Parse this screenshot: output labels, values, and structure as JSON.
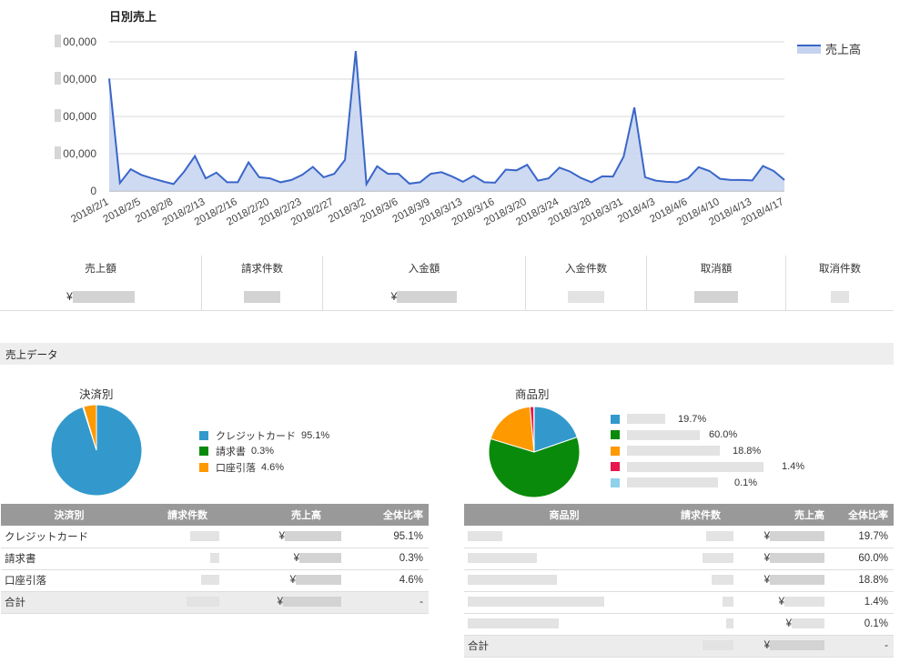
{
  "chart_data": {
    "type": "area",
    "title": "日別売上",
    "series": [
      {
        "name": "売上高",
        "color": "#3a66c9",
        "values": [
          490,
          35,
          95,
          70,
          55,
          42,
          30,
          85,
          152,
          55,
          80,
          38,
          38,
          125,
          60,
          55,
          38,
          48,
          70,
          105,
          60,
          75,
          135,
          610,
          30,
          108,
          75,
          75,
          32,
          38,
          75,
          82,
          63,
          40,
          66,
          38,
          36,
          93,
          90,
          114,
          45,
          55,
          102,
          85,
          57,
          38,
          64,
          63,
          150,
          364,
          60,
          45,
          40,
          38,
          55,
          104,
          87,
          53,
          48,
          48,
          46,
          109,
          87,
          48
        ]
      }
    ],
    "x_tick_labels": [
      "2018/2/1",
      "2018/2/5",
      "2018/2/8",
      "2018/2/13",
      "2018/2/16",
      "2018/2/20",
      "2018/2/23",
      "2018/2/27",
      "2018/3/2",
      "2018/3/6",
      "2018/3/9",
      "2018/3/13",
      "2018/3/16",
      "2018/3/20",
      "2018/3/24",
      "2018/3/28",
      "2018/3/31",
      "2018/4/3",
      "2018/4/6",
      "2018/4/10",
      "2018/4/13",
      "2018/4/17"
    ],
    "y_tick_labels": [
      "0",
      "00,000",
      "00,000",
      "00,000",
      "00,000"
    ],
    "grid": true,
    "legend": "top-right"
  },
  "summary": {
    "items": [
      {
        "label": "売上額",
        "prefix": "¥"
      },
      {
        "label": "請求件数",
        "prefix": ""
      },
      {
        "label": "入金額",
        "prefix": "¥"
      },
      {
        "label": "入金件数",
        "prefix": ""
      },
      {
        "label": "取消額",
        "prefix": ""
      },
      {
        "label": "取消件数",
        "prefix": ""
      }
    ]
  },
  "section_title": "売上データ",
  "payment": {
    "title": "決済別",
    "slices": [
      {
        "label": "クレジットカード",
        "pct_text": "95.1%",
        "value": 95.1,
        "color": "#3399cc"
      },
      {
        "label": "請求書",
        "pct_text": "0.3%",
        "value": 0.3,
        "color": "#0a8a0a"
      },
      {
        "label": "口座引落",
        "pct_text": "4.6%",
        "value": 4.6,
        "color": "#ff9900"
      }
    ],
    "headers": [
      "決済別",
      "請求件数",
      "売上高",
      "全体比率"
    ],
    "rows": [
      {
        "name": "クレジットカード",
        "yen": "¥",
        "ratio": "95.1%"
      },
      {
        "name": "請求書",
        "yen": "¥",
        "ratio": "0.3%"
      },
      {
        "name": "口座引落",
        "yen": "¥",
        "ratio": "4.6%"
      }
    ],
    "total": {
      "name": "合計",
      "yen": "¥",
      "ratio": "-"
    }
  },
  "product": {
    "title": "商品別",
    "slices": [
      {
        "pct_text": "19.7%",
        "value": 19.7,
        "color": "#3399cc"
      },
      {
        "pct_text": "60.0%",
        "value": 60.0,
        "color": "#0a8a0a"
      },
      {
        "pct_text": "18.8%",
        "value": 18.8,
        "color": "#ff9900"
      },
      {
        "pct_text": "1.4%",
        "value": 1.4,
        "color": "#e8174d"
      },
      {
        "pct_text": "0.1%",
        "value": 0.1,
        "color": "#8fd1ea"
      }
    ],
    "headers": [
      "商品別",
      "請求件数",
      "売上高",
      "全体比率"
    ],
    "rows": [
      {
        "yen": "¥",
        "ratio": "19.7%"
      },
      {
        "yen": "¥",
        "ratio": "60.0%"
      },
      {
        "yen": "¥",
        "ratio": "18.8%"
      },
      {
        "yen": "¥",
        "ratio": "1.4%"
      },
      {
        "yen": "¥",
        "ratio": "0.1%"
      }
    ],
    "total": {
      "name": "合計",
      "yen": "¥",
      "ratio": "-"
    }
  }
}
